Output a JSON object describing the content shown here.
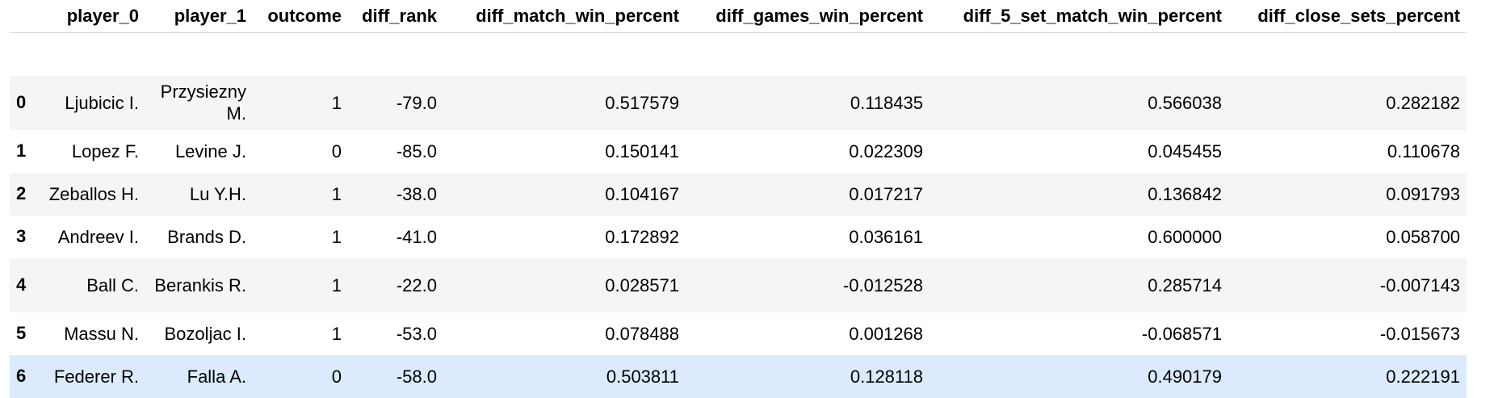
{
  "columns": [
    "",
    "player_0",
    "player_1",
    "outcome",
    "diff_rank",
    "diff_match_win_percent",
    "diff_games_win_percent",
    "diff_5_set_match_win_percent",
    "diff_close_sets_percent"
  ],
  "rows": [
    {
      "index": "0",
      "player_0": "Ljubicic I.",
      "player_1": "Przysiezny M.",
      "outcome": "1",
      "diff_rank": "-79.0",
      "diff_match_win_percent": "0.517579",
      "diff_games_win_percent": "0.118435",
      "diff_5_set_match_win_percent": "0.566038",
      "diff_close_sets_percent": "0.282182"
    },
    {
      "index": "1",
      "player_0": "Lopez F.",
      "player_1": "Levine J.",
      "outcome": "0",
      "diff_rank": "-85.0",
      "diff_match_win_percent": "0.150141",
      "diff_games_win_percent": "0.022309",
      "diff_5_set_match_win_percent": "0.045455",
      "diff_close_sets_percent": "0.110678"
    },
    {
      "index": "2",
      "player_0": "Zeballos H.",
      "player_1": "Lu Y.H.",
      "outcome": "1",
      "diff_rank": "-38.0",
      "diff_match_win_percent": "0.104167",
      "diff_games_win_percent": "0.017217",
      "diff_5_set_match_win_percent": "0.136842",
      "diff_close_sets_percent": "0.091793"
    },
    {
      "index": "3",
      "player_0": "Andreev I.",
      "player_1": "Brands D.",
      "outcome": "1",
      "diff_rank": "-41.0",
      "diff_match_win_percent": "0.172892",
      "diff_games_win_percent": "0.036161",
      "diff_5_set_match_win_percent": "0.600000",
      "diff_close_sets_percent": "0.058700"
    },
    {
      "index": "4",
      "player_0": "Ball C.",
      "player_1": "Berankis R.",
      "outcome": "1",
      "diff_rank": "-22.0",
      "diff_match_win_percent": "0.028571",
      "diff_games_win_percent": "-0.012528",
      "diff_5_set_match_win_percent": "0.285714",
      "diff_close_sets_percent": "-0.007143"
    },
    {
      "index": "5",
      "player_0": "Massu N.",
      "player_1": "Bozoljac I.",
      "outcome": "1",
      "diff_rank": "-53.0",
      "diff_match_win_percent": "0.078488",
      "diff_games_win_percent": "0.001268",
      "diff_5_set_match_win_percent": "-0.068571",
      "diff_close_sets_percent": "-0.015673"
    },
    {
      "index": "6",
      "player_0": "Federer R.",
      "player_1": "Falla A.",
      "outcome": "0",
      "diff_rank": "-58.0",
      "diff_match_win_percent": "0.503811",
      "diff_games_win_percent": "0.128118",
      "diff_5_set_match_win_percent": "0.490179",
      "diff_close_sets_percent": "0.222191"
    }
  ],
  "colors": {
    "odd_row": "#f5f5f5",
    "even_row": "#ffffff",
    "hover_row": "#dbeafc"
  }
}
